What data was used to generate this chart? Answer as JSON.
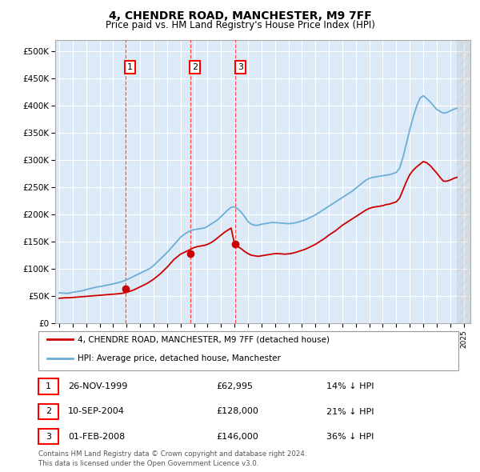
{
  "title": "4, CHENDRE ROAD, MANCHESTER, M9 7FF",
  "subtitle": "Price paid vs. HM Land Registry's House Price Index (HPI)",
  "ylabel_ticks": [
    "£0",
    "£50K",
    "£100K",
    "£150K",
    "£200K",
    "£250K",
    "£300K",
    "£350K",
    "£400K",
    "£450K",
    "£500K"
  ],
  "ytick_values": [
    0,
    50000,
    100000,
    150000,
    200000,
    250000,
    300000,
    350000,
    400000,
    450000,
    500000
  ],
  "ylim": [
    0,
    520000
  ],
  "xlim_start": 1994.7,
  "xlim_end": 2025.5,
  "fig_bg_color": "#ffffff",
  "plot_bg_color": "#dce9f7",
  "grid_color": "#ffffff",
  "hpi_color": "#6baed6",
  "price_color": "#cc0000",
  "sale_marker_color": "#cc0000",
  "sale_dashed_color": "#ff4444",
  "transactions": [
    {
      "label": "1",
      "date": 1999.9,
      "price": 62995
    },
    {
      "label": "2",
      "date": 2004.7,
      "price": 128000
    },
    {
      "label": "3",
      "date": 2008.08,
      "price": 146000
    }
  ],
  "table_rows": [
    {
      "num": "1",
      "date": "26-NOV-1999",
      "price": "£62,995",
      "pct": "14% ↓ HPI"
    },
    {
      "num": "2",
      "date": "10-SEP-2004",
      "price": "£128,000",
      "pct": "21% ↓ HPI"
    },
    {
      "num": "3",
      "date": "01-FEB-2008",
      "price": "£146,000",
      "pct": "36% ↓ HPI"
    }
  ],
  "legend_entries": [
    {
      "label": "4, CHENDRE ROAD, MANCHESTER, M9 7FF (detached house)",
      "color": "#cc0000"
    },
    {
      "label": "HPI: Average price, detached house, Manchester",
      "color": "#6baed6"
    }
  ],
  "footer": "Contains HM Land Registry data © Crown copyright and database right 2024.\nThis data is licensed under the Open Government Licence v3.0.",
  "hpi_data_years": [
    1995.0,
    1995.25,
    1995.5,
    1995.75,
    1996.0,
    1996.25,
    1996.5,
    1996.75,
    1997.0,
    1997.25,
    1997.5,
    1997.75,
    1998.0,
    1998.25,
    1998.5,
    1998.75,
    1999.0,
    1999.25,
    1999.5,
    1999.75,
    2000.0,
    2000.25,
    2000.5,
    2000.75,
    2001.0,
    2001.25,
    2001.5,
    2001.75,
    2002.0,
    2002.25,
    2002.5,
    2002.75,
    2003.0,
    2003.25,
    2003.5,
    2003.75,
    2004.0,
    2004.25,
    2004.5,
    2004.75,
    2005.0,
    2005.25,
    2005.5,
    2005.75,
    2006.0,
    2006.25,
    2006.5,
    2006.75,
    2007.0,
    2007.25,
    2007.5,
    2007.75,
    2008.0,
    2008.25,
    2008.5,
    2008.75,
    2009.0,
    2009.25,
    2009.5,
    2009.75,
    2010.0,
    2010.25,
    2010.5,
    2010.75,
    2011.0,
    2011.25,
    2011.5,
    2011.75,
    2012.0,
    2012.25,
    2012.5,
    2012.75,
    2013.0,
    2013.25,
    2013.5,
    2013.75,
    2014.0,
    2014.25,
    2014.5,
    2014.75,
    2015.0,
    2015.25,
    2015.5,
    2015.75,
    2016.0,
    2016.25,
    2016.5,
    2016.75,
    2017.0,
    2017.25,
    2017.5,
    2017.75,
    2018.0,
    2018.25,
    2018.5,
    2018.75,
    2019.0,
    2019.25,
    2019.5,
    2019.75,
    2020.0,
    2020.25,
    2020.5,
    2020.75,
    2021.0,
    2021.25,
    2021.5,
    2021.75,
    2022.0,
    2022.25,
    2022.5,
    2022.75,
    2023.0,
    2023.25,
    2023.5,
    2023.75,
    2024.0,
    2024.25,
    2024.5
  ],
  "hpi_data_values": [
    56000,
    55500,
    55000,
    55500,
    57000,
    58000,
    59000,
    60000,
    62000,
    63500,
    65000,
    66500,
    67500,
    68500,
    70000,
    71000,
    72500,
    74000,
    75500,
    77500,
    80000,
    83000,
    86000,
    89000,
    92000,
    95000,
    98000,
    101000,
    106000,
    112000,
    118000,
    124000,
    130000,
    137000,
    144000,
    151000,
    158000,
    163000,
    167000,
    170000,
    172000,
    173000,
    174000,
    175000,
    178000,
    182000,
    186000,
    190000,
    196000,
    202000,
    208000,
    213000,
    214000,
    210000,
    204000,
    196000,
    187000,
    182000,
    180000,
    180000,
    182000,
    183000,
    184000,
    185000,
    185000,
    184500,
    184000,
    183500,
    183000,
    183500,
    184500,
    186000,
    188000,
    190000,
    193000,
    196000,
    199000,
    203000,
    207000,
    211000,
    215000,
    219000,
    223000,
    227000,
    231000,
    235000,
    239000,
    243000,
    248000,
    253000,
    258000,
    263000,
    266000,
    268000,
    269000,
    270000,
    271000,
    272000,
    273000,
    275000,
    277000,
    285000,
    305000,
    330000,
    355000,
    378000,
    398000,
    413000,
    418000,
    413000,
    407000,
    400000,
    393000,
    389000,
    386000,
    387000,
    390000,
    393000,
    395000
  ],
  "price_data_years": [
    1995.0,
    1995.25,
    1995.5,
    1995.75,
    1996.0,
    1996.25,
    1996.5,
    1996.75,
    1997.0,
    1997.25,
    1997.5,
    1997.75,
    1998.0,
    1998.25,
    1998.5,
    1998.75,
    1999.0,
    1999.25,
    1999.5,
    1999.75,
    2000.0,
    2000.25,
    2000.5,
    2000.75,
    2001.0,
    2001.25,
    2001.5,
    2001.75,
    2002.0,
    2002.25,
    2002.5,
    2002.75,
    2003.0,
    2003.25,
    2003.5,
    2003.75,
    2004.0,
    2004.25,
    2004.5,
    2004.75,
    2005.0,
    2005.25,
    2005.5,
    2005.75,
    2006.0,
    2006.25,
    2006.5,
    2006.75,
    2007.0,
    2007.25,
    2007.5,
    2007.75,
    2008.0,
    2008.25,
    2008.5,
    2008.75,
    2009.0,
    2009.25,
    2009.5,
    2009.75,
    2010.0,
    2010.25,
    2010.5,
    2010.75,
    2011.0,
    2011.25,
    2011.5,
    2011.75,
    2012.0,
    2012.25,
    2012.5,
    2012.75,
    2013.0,
    2013.25,
    2013.5,
    2013.75,
    2014.0,
    2014.25,
    2014.5,
    2014.75,
    2015.0,
    2015.25,
    2015.5,
    2015.75,
    2016.0,
    2016.25,
    2016.5,
    2016.75,
    2017.0,
    2017.25,
    2017.5,
    2017.75,
    2018.0,
    2018.25,
    2018.5,
    2018.75,
    2019.0,
    2019.25,
    2019.5,
    2019.75,
    2020.0,
    2020.25,
    2020.5,
    2020.75,
    2021.0,
    2021.25,
    2021.5,
    2021.75,
    2022.0,
    2022.25,
    2022.5,
    2022.75,
    2023.0,
    2023.25,
    2023.5,
    2023.75,
    2024.0,
    2024.25,
    2024.5
  ],
  "price_data_values": [
    46000,
    46500,
    47000,
    47000,
    47500,
    48000,
    48500,
    49000,
    49500,
    50000,
    50500,
    51000,
    51500,
    52000,
    52500,
    53000,
    53500,
    54000,
    54500,
    55500,
    57000,
    59000,
    61000,
    64000,
    67000,
    70000,
    73000,
    77000,
    81000,
    86000,
    91000,
    97000,
    103000,
    110000,
    117000,
    122000,
    127000,
    130000,
    133000,
    136000,
    139000,
    141000,
    142000,
    143000,
    145000,
    148000,
    152000,
    157000,
    162000,
    167000,
    171000,
    175000,
    146000,
    141000,
    137000,
    132000,
    128000,
    125000,
    124000,
    123000,
    124000,
    125000,
    126000,
    127000,
    128000,
    128000,
    127500,
    127000,
    127500,
    128500,
    130000,
    132000,
    134000,
    136000,
    139000,
    142000,
    145000,
    149000,
    153000,
    157000,
    162000,
    166000,
    170000,
    175000,
    180000,
    184000,
    188000,
    192000,
    196000,
    200000,
    204000,
    208000,
    211000,
    213000,
    214000,
    215000,
    216000,
    218000,
    219000,
    221000,
    223000,
    230000,
    245000,
    260000,
    273000,
    281000,
    287000,
    292000,
    297000,
    295000,
    290000,
    283000,
    276000,
    268000,
    261000,
    261000,
    263000,
    266000,
    268000
  ]
}
